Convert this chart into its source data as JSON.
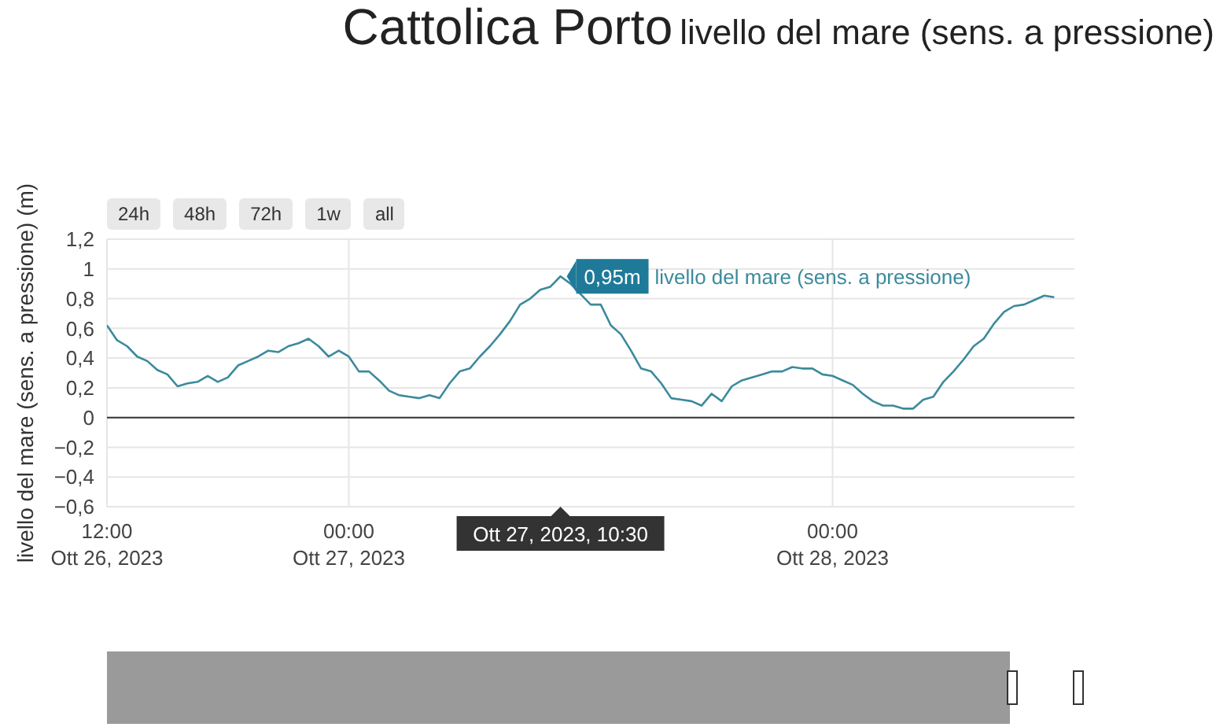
{
  "chart_data": {
    "type": "line",
    "title": "Cattolica Porto",
    "subtitle": "livello del mare (sens. a pressione)",
    "ylabel": "livello del mare (sens. a pressione) (m)",
    "x": [
      "2023-10-26T12:00",
      "2023-10-26T12:30",
      "2023-10-26T13:00",
      "2023-10-26T13:30",
      "2023-10-26T14:00",
      "2023-10-26T14:30",
      "2023-10-26T15:00",
      "2023-10-26T15:30",
      "2023-10-26T16:00",
      "2023-10-26T16:30",
      "2023-10-26T17:00",
      "2023-10-26T17:30",
      "2023-10-26T18:00",
      "2023-10-26T18:30",
      "2023-10-26T19:00",
      "2023-10-26T19:30",
      "2023-10-26T20:00",
      "2023-10-26T20:30",
      "2023-10-26T21:00",
      "2023-10-26T21:30",
      "2023-10-26T22:00",
      "2023-10-26T22:30",
      "2023-10-26T23:00",
      "2023-10-26T23:30",
      "2023-10-27T00:00",
      "2023-10-27T00:30",
      "2023-10-27T01:00",
      "2023-10-27T01:30",
      "2023-10-27T02:00",
      "2023-10-27T02:30",
      "2023-10-27T03:00",
      "2023-10-27T03:30",
      "2023-10-27T04:00",
      "2023-10-27T04:30",
      "2023-10-27T05:00",
      "2023-10-27T05:30",
      "2023-10-27T06:00",
      "2023-10-27T06:30",
      "2023-10-27T07:00",
      "2023-10-27T07:30",
      "2023-10-27T08:00",
      "2023-10-27T08:30",
      "2023-10-27T09:00",
      "2023-10-27T09:30",
      "2023-10-27T10:00",
      "2023-10-27T10:30",
      "2023-10-27T11:00",
      "2023-10-27T11:30",
      "2023-10-27T12:00",
      "2023-10-27T12:30",
      "2023-10-27T13:00",
      "2023-10-27T13:30",
      "2023-10-27T14:00",
      "2023-10-27T14:30",
      "2023-10-27T15:00",
      "2023-10-27T15:30",
      "2023-10-27T16:00",
      "2023-10-27T16:30",
      "2023-10-27T17:00",
      "2023-10-27T17:30",
      "2023-10-27T18:00",
      "2023-10-27T18:30",
      "2023-10-27T19:00",
      "2023-10-27T19:30",
      "2023-10-27T20:00",
      "2023-10-27T20:30",
      "2023-10-27T21:00",
      "2023-10-27T21:30",
      "2023-10-27T22:00",
      "2023-10-27T22:30",
      "2023-10-27T23:00",
      "2023-10-27T23:30",
      "2023-10-28T00:00",
      "2023-10-28T00:30",
      "2023-10-28T01:00",
      "2023-10-28T01:30",
      "2023-10-28T02:00",
      "2023-10-28T02:30",
      "2023-10-28T03:00",
      "2023-10-28T03:30",
      "2023-10-28T04:00",
      "2023-10-28T04:30",
      "2023-10-28T05:00",
      "2023-10-28T05:30",
      "2023-10-28T06:00",
      "2023-10-28T06:30",
      "2023-10-28T07:00",
      "2023-10-28T07:30",
      "2023-10-28T08:00",
      "2023-10-28T08:30",
      "2023-10-28T09:00",
      "2023-10-28T09:30",
      "2023-10-28T10:00",
      "2023-10-28T10:30",
      "2023-10-28T11:00"
    ],
    "series": [
      {
        "name": "livello del mare (sens. a pressione)",
        "color": "#3b8a9c",
        "values": [
          0.62,
          0.52,
          0.48,
          0.41,
          0.38,
          0.32,
          0.29,
          0.21,
          0.23,
          0.24,
          0.28,
          0.24,
          0.27,
          0.35,
          0.38,
          0.41,
          0.45,
          0.44,
          0.48,
          0.5,
          0.53,
          0.48,
          0.41,
          0.45,
          0.41,
          0.31,
          0.31,
          0.25,
          0.18,
          0.15,
          0.14,
          0.13,
          0.15,
          0.13,
          0.23,
          0.31,
          0.33,
          0.41,
          0.48,
          0.56,
          0.65,
          0.76,
          0.8,
          0.86,
          0.88,
          0.95,
          0.9,
          0.83,
          0.76,
          0.76,
          0.62,
          0.56,
          0.45,
          0.33,
          0.31,
          0.23,
          0.13,
          0.12,
          0.11,
          0.08,
          0.16,
          0.11,
          0.21,
          0.25,
          0.27,
          0.29,
          0.31,
          0.31,
          0.34,
          0.33,
          0.33,
          0.29,
          0.28,
          0.25,
          0.22,
          0.16,
          0.11,
          0.08,
          0.08,
          0.06,
          0.06,
          0.12,
          0.14,
          0.24,
          0.31,
          0.39,
          0.48,
          0.53,
          0.63,
          0.71,
          0.75,
          0.76,
          0.79,
          0.82,
          0.81
        ]
      }
    ],
    "xlim": [
      "2023-10-26T12:00",
      "2023-10-28T12:00"
    ],
    "xticks": [
      {
        "value": "2023-10-26T12:00",
        "label": "12:00\nOtt 26, 2023"
      },
      {
        "value": "2023-10-27T00:00",
        "label": "00:00\nOtt 27, 2023"
      },
      {
        "value": "2023-10-28T00:00",
        "label": "00:00\nOtt 28, 2023"
      }
    ],
    "ylim": [
      -0.6,
      1.2
    ],
    "yticks": [
      {
        "value": -0.6,
        "label": "−0,6"
      },
      {
        "value": -0.4,
        "label": "−0,4"
      },
      {
        "value": -0.2,
        "label": "−0,2"
      },
      0,
      {
        "value": 0.2,
        "label": "0,2"
      },
      {
        "value": 0.4,
        "label": "0,4"
      },
      {
        "value": 0.6,
        "label": "0,6"
      },
      {
        "value": 0.8,
        "label": "0,8"
      },
      1,
      {
        "value": 1.2,
        "label": "1,2"
      }
    ],
    "ref_lines": [
      {
        "axis": "y",
        "value": 0,
        "color": "#333333"
      }
    ],
    "grid": true,
    "marker": "none",
    "line_style": "solid",
    "legend": false,
    "annotations": [
      "24h",
      "48h",
      "72h",
      "1w",
      "all",
      {
        "text": "0,95m",
        "x": "2023-10-27T10:30",
        "y": 0.95
      },
      "Ott 27, 2023, 10:30"
    ]
  }
}
